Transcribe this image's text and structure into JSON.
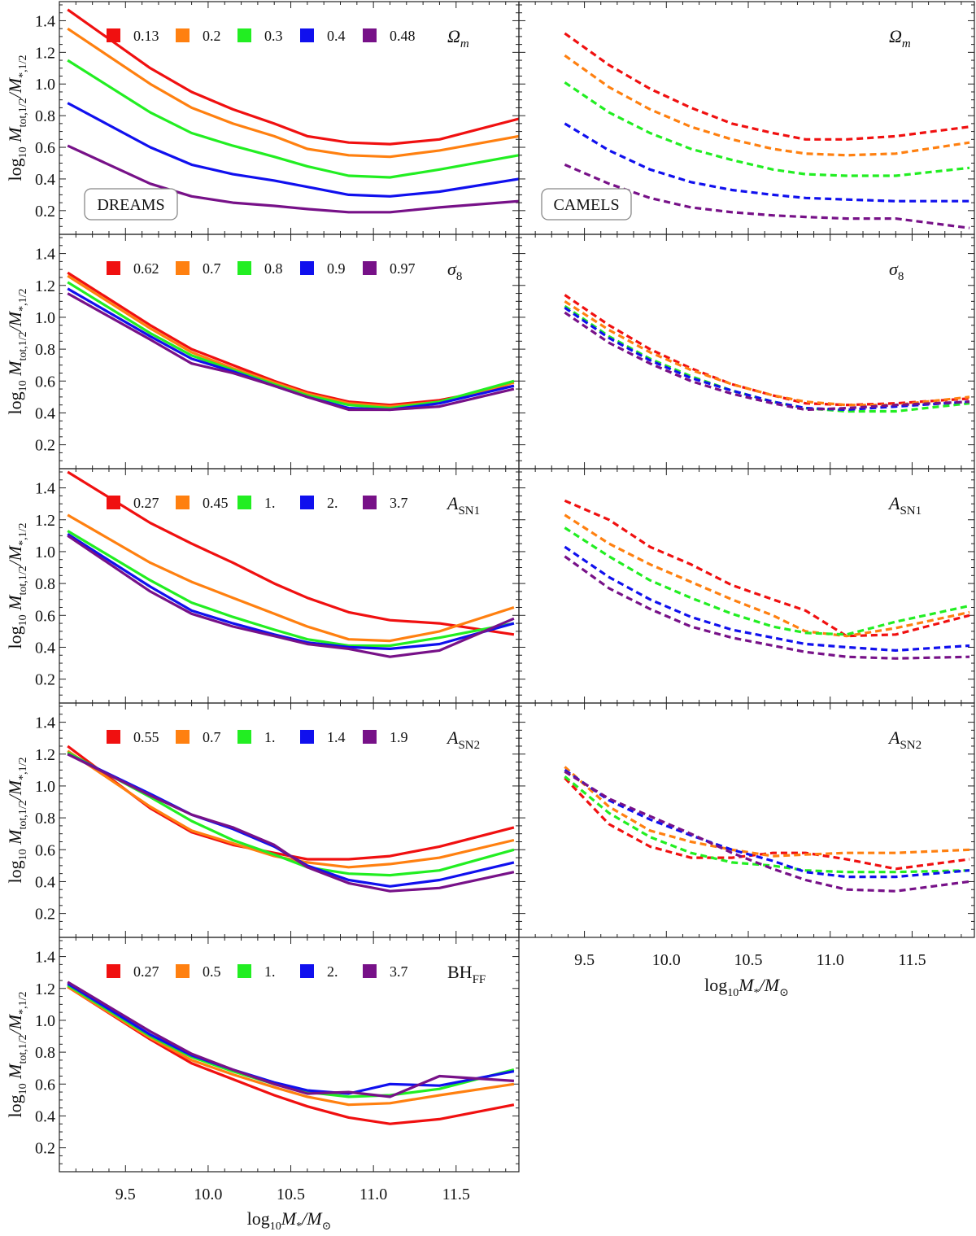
{
  "chart_data": {
    "type": "line",
    "title": "",
    "xlabel": "log10 M*/M⊙",
    "ylabel": "log10 Mtot,1/2/M*,1/2",
    "x_ticks": [
      9.5,
      10.0,
      10.5,
      11.0,
      11.5
    ],
    "x_tick_labels": [
      "9.5",
      "10.0",
      "10.5",
      "11.0",
      "11.5"
    ],
    "y_ticks": [
      0.2,
      0.4,
      0.6,
      0.8,
      1.0,
      1.2,
      1.4
    ],
    "y_tick_labels": [
      "0.2",
      "0.4",
      "0.6",
      "0.8",
      "1.0",
      "1.2",
      "1.4"
    ],
    "xlim": [
      9.1,
      11.88
    ],
    "ylim": [
      0.05,
      1.5
    ],
    "colors": [
      "#f01010",
      "#ff8010",
      "#22ee22",
      "#1010ee",
      "#771188"
    ],
    "columns": [
      {
        "box_label": "DREAMS",
        "line_style": "solid"
      },
      {
        "box_label": "CAMELS",
        "line_style": "dashed"
      }
    ],
    "rows": [
      {
        "param_label": "Ωm",
        "param_main": "Ω",
        "param_sub": "m",
        "param_sub_italic": true,
        "legend": [
          "0.13",
          "0.2",
          "0.3",
          "0.4",
          "0.48"
        ],
        "dreams": {
          "x": [
            9.15,
            9.65,
            9.9,
            10.15,
            10.4,
            10.6,
            10.85,
            11.1,
            11.4,
            11.88
          ],
          "series": [
            [
              1.47,
              1.1,
              0.95,
              0.84,
              0.75,
              0.67,
              0.63,
              0.62,
              0.65,
              0.78
            ],
            [
              1.35,
              1.0,
              0.85,
              0.75,
              0.67,
              0.59,
              0.55,
              0.54,
              0.58,
              0.67
            ],
            [
              1.15,
              0.82,
              0.69,
              0.61,
              0.54,
              0.48,
              0.42,
              0.41,
              0.46,
              0.55
            ],
            [
              0.88,
              0.6,
              0.49,
              0.43,
              0.39,
              0.35,
              0.3,
              0.29,
              0.32,
              0.4
            ],
            [
              0.61,
              0.37,
              0.29,
              0.25,
              0.23,
              0.21,
              0.19,
              0.19,
              0.22,
              0.26
            ]
          ]
        },
        "camels": {
          "x": [
            9.38,
            9.65,
            9.9,
            10.15,
            10.4,
            10.65,
            10.85,
            11.1,
            11.4,
            11.85
          ],
          "series": [
            [
              1.32,
              1.12,
              0.97,
              0.85,
              0.75,
              0.69,
              0.65,
              0.65,
              0.67,
              0.73
            ],
            [
              1.18,
              0.98,
              0.84,
              0.73,
              0.65,
              0.59,
              0.56,
              0.55,
              0.56,
              0.63
            ],
            [
              1.01,
              0.82,
              0.69,
              0.59,
              0.52,
              0.46,
              0.43,
              0.42,
              0.42,
              0.47
            ],
            [
              0.75,
              0.58,
              0.46,
              0.38,
              0.33,
              0.3,
              0.28,
              0.27,
              0.26,
              0.26
            ],
            [
              0.49,
              0.37,
              0.28,
              0.22,
              0.19,
              0.17,
              0.16,
              0.15,
              0.15,
              0.09
            ]
          ]
        }
      },
      {
        "param_label": "σ8",
        "param_main": "σ",
        "param_sub": "8",
        "param_sub_italic": false,
        "legend": [
          "0.62",
          "0.7",
          "0.8",
          "0.9",
          "0.97"
        ],
        "dreams": {
          "x": [
            9.15,
            9.65,
            9.9,
            10.15,
            10.4,
            10.6,
            10.85,
            11.1,
            11.4,
            11.85
          ],
          "series": [
            [
              1.28,
              0.95,
              0.8,
              0.7,
              0.6,
              0.53,
              0.47,
              0.45,
              0.48,
              0.57
            ],
            [
              1.26,
              0.93,
              0.78,
              0.68,
              0.59,
              0.52,
              0.46,
              0.44,
              0.47,
              0.59
            ],
            [
              1.22,
              0.9,
              0.76,
              0.67,
              0.58,
              0.51,
              0.45,
              0.43,
              0.47,
              0.6
            ],
            [
              1.18,
              0.88,
              0.74,
              0.66,
              0.57,
              0.5,
              0.43,
              0.42,
              0.46,
              0.57
            ],
            [
              1.15,
              0.86,
              0.71,
              0.65,
              0.57,
              0.5,
              0.42,
              0.42,
              0.44,
              0.55
            ]
          ]
        },
        "camels": {
          "x": [
            9.38,
            9.65,
            9.9,
            10.15,
            10.4,
            10.65,
            10.85,
            11.1,
            11.4,
            11.85
          ],
          "series": [
            [
              1.14,
              0.95,
              0.8,
              0.68,
              0.58,
              0.51,
              0.46,
              0.45,
              0.46,
              0.49
            ],
            [
              1.1,
              0.92,
              0.78,
              0.67,
              0.58,
              0.51,
              0.47,
              0.45,
              0.45,
              0.5
            ],
            [
              1.07,
              0.88,
              0.74,
              0.63,
              0.54,
              0.47,
              0.43,
              0.41,
              0.41,
              0.46
            ],
            [
              1.06,
              0.87,
              0.73,
              0.62,
              0.54,
              0.47,
              0.43,
              0.42,
              0.44,
              0.47
            ],
            [
              1.03,
              0.84,
              0.71,
              0.6,
              0.52,
              0.46,
              0.42,
              0.43,
              0.45,
              0.47
            ]
          ]
        }
      },
      {
        "param_label": "ASN1",
        "param_main": "A",
        "param_sub": "SN1",
        "param_sub_italic": false,
        "legend": [
          "0.27",
          "0.45",
          "1.",
          "2.",
          "3.7"
        ],
        "dreams": {
          "x": [
            9.15,
            9.65,
            9.9,
            10.15,
            10.4,
            10.6,
            10.85,
            11.1,
            11.4,
            11.85
          ],
          "series": [
            [
              1.5,
              1.18,
              1.05,
              0.93,
              0.8,
              0.71,
              0.62,
              0.57,
              0.55,
              0.48
            ],
            [
              1.23,
              0.93,
              0.81,
              0.71,
              0.61,
              0.53,
              0.45,
              0.44,
              0.5,
              0.65
            ],
            [
              1.13,
              0.82,
              0.68,
              0.59,
              0.51,
              0.45,
              0.41,
              0.41,
              0.46,
              0.55
            ],
            [
              1.11,
              0.78,
              0.63,
              0.55,
              0.48,
              0.43,
              0.4,
              0.39,
              0.42,
              0.55
            ],
            [
              1.1,
              0.75,
              0.61,
              0.53,
              0.47,
              0.42,
              0.39,
              0.34,
              0.38,
              0.58
            ]
          ]
        },
        "camels": {
          "x": [
            9.38,
            9.65,
            9.9,
            10.15,
            10.4,
            10.65,
            10.85,
            11.1,
            11.4,
            11.85
          ],
          "series": [
            [
              1.32,
              1.2,
              1.03,
              0.92,
              0.79,
              0.7,
              0.63,
              0.47,
              0.48,
              0.6
            ],
            [
              1.23,
              1.05,
              0.92,
              0.81,
              0.7,
              0.6,
              0.5,
              0.47,
              0.52,
              0.62
            ],
            [
              1.15,
              0.97,
              0.82,
              0.71,
              0.61,
              0.53,
              0.49,
              0.48,
              0.56,
              0.66
            ],
            [
              1.03,
              0.84,
              0.7,
              0.59,
              0.51,
              0.46,
              0.42,
              0.4,
              0.38,
              0.41
            ],
            [
              0.97,
              0.77,
              0.64,
              0.53,
              0.46,
              0.41,
              0.37,
              0.34,
              0.33,
              0.34
            ]
          ]
        }
      },
      {
        "param_label": "ASN2",
        "param_main": "A",
        "param_sub": "SN2",
        "param_sub_italic": false,
        "legend": [
          "0.55",
          "0.7",
          "1.",
          "1.4",
          "1.9"
        ],
        "dreams": {
          "x": [
            9.15,
            9.65,
            9.9,
            10.15,
            10.4,
            10.6,
            10.85,
            11.1,
            11.4,
            11.85
          ],
          "series": [
            [
              1.25,
              0.86,
              0.71,
              0.63,
              0.58,
              0.54,
              0.54,
              0.56,
              0.62,
              0.74
            ],
            [
              1.22,
              0.87,
              0.72,
              0.64,
              0.56,
              0.52,
              0.49,
              0.51,
              0.55,
              0.66
            ],
            [
              1.21,
              0.93,
              0.78,
              0.66,
              0.57,
              0.49,
              0.45,
              0.44,
              0.47,
              0.6
            ],
            [
              1.2,
              0.95,
              0.82,
              0.73,
              0.62,
              0.5,
              0.41,
              0.37,
              0.41,
              0.52
            ],
            [
              1.2,
              0.94,
              0.82,
              0.74,
              0.63,
              0.49,
              0.39,
              0.34,
              0.36,
              0.46
            ]
          ]
        },
        "camels": {
          "x": [
            9.38,
            9.65,
            9.9,
            10.15,
            10.4,
            10.65,
            10.85,
            11.1,
            11.4,
            11.85
          ],
          "series": [
            [
              1.05,
              0.76,
              0.62,
              0.55,
              0.55,
              0.58,
              0.58,
              0.54,
              0.48,
              0.54
            ],
            [
              1.12,
              0.87,
              0.72,
              0.65,
              0.6,
              0.56,
              0.57,
              0.58,
              0.58,
              0.6
            ],
            [
              1.06,
              0.83,
              0.68,
              0.58,
              0.52,
              0.5,
              0.47,
              0.46,
              0.46,
              0.47
            ],
            [
              1.1,
              0.91,
              0.79,
              0.69,
              0.6,
              0.53,
              0.46,
              0.43,
              0.43,
              0.47
            ],
            [
              1.09,
              0.92,
              0.81,
              0.7,
              0.58,
              0.48,
              0.41,
              0.35,
              0.34,
              0.4
            ]
          ]
        }
      },
      {
        "param_label": "BHFF",
        "param_main": "BH",
        "param_sub": "FF",
        "param_main_upright": true,
        "param_sub_italic": false,
        "legend": [
          "0.27",
          "0.5",
          "1.",
          "2.",
          "3.7"
        ],
        "dreams": {
          "x": [
            9.15,
            9.65,
            9.9,
            10.15,
            10.4,
            10.6,
            10.85,
            11.1,
            11.4,
            11.85
          ],
          "series": [
            [
              1.21,
              0.88,
              0.73,
              0.63,
              0.53,
              0.46,
              0.39,
              0.35,
              0.38,
              0.47
            ],
            [
              1.21,
              0.89,
              0.75,
              0.66,
              0.58,
              0.52,
              0.47,
              0.48,
              0.53,
              0.6
            ],
            [
              1.22,
              0.9,
              0.77,
              0.68,
              0.6,
              0.55,
              0.52,
              0.53,
              0.57,
              0.69
            ],
            [
              1.23,
              0.91,
              0.78,
              0.69,
              0.61,
              0.56,
              0.54,
              0.6,
              0.59,
              0.68
            ],
            [
              1.24,
              0.93,
              0.79,
              0.69,
              0.6,
              0.54,
              0.55,
              0.52,
              0.65,
              0.62
            ]
          ]
        },
        "camels": null
      }
    ]
  }
}
